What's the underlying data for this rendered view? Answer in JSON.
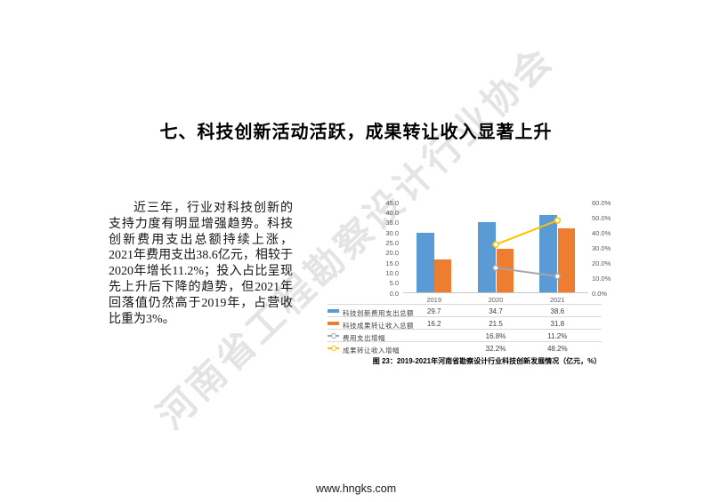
{
  "page": {
    "title": "七、科技创新活动活跃，成果转让收入显著上升",
    "paragraph": "近三年，行业对科技创新的支持力度有明显增强趋势。科技创新费用支出总额持续上涨，2021年费用支出38.6亿元，相较于2020年增长11.2%；投入占比呈现先上升后下降的趋势，但2021年回落值仍然高于2019年，占营收比重为3%。",
    "watermark": "河南省工程勘察设计行业协会",
    "footer": "www.hngks.com"
  },
  "chart_data": {
    "type": "bar+line",
    "title": "图 23：2019-2021年河南省勘察设计行业科技创新发展情况（亿元，%）",
    "categories": [
      "2019",
      "2020",
      "2021"
    ],
    "series": [
      {
        "name": "科技创新费用支出总额",
        "type": "bar",
        "axis": "left",
        "color": "#5B9BD5",
        "values": [
          29.7,
          34.7,
          38.6
        ],
        "display": [
          "29.7",
          "34.7",
          "38.6"
        ]
      },
      {
        "name": "科技成果转让收入总额",
        "type": "bar",
        "axis": "left",
        "color": "#ED7D31",
        "values": [
          16.2,
          21.5,
          31.8
        ],
        "display": [
          "16.2",
          "21.5",
          "31.8"
        ]
      },
      {
        "name": "费用支出增幅",
        "type": "line",
        "axis": "right",
        "color": "#A5A5A5",
        "values": [
          null,
          16.8,
          11.2
        ],
        "display": [
          "",
          "16.8%",
          "11.2%"
        ]
      },
      {
        "name": "成果转让收入增幅",
        "type": "line",
        "axis": "right",
        "color": "#FFC000",
        "values": [
          null,
          32.2,
          48.2
        ],
        "display": [
          "",
          "32.2%",
          "48.2%"
        ]
      }
    ],
    "left_axis": {
      "min": 0,
      "max": 45,
      "step": 5,
      "ticks": [
        "0.0",
        "5.0",
        "10.0",
        "15.0",
        "20.0",
        "25.0",
        "30.0",
        "35.0",
        "40.0",
        "45.0"
      ]
    },
    "right_axis": {
      "min": 0,
      "max": 60,
      "step": 10,
      "ticks": [
        "0.0%",
        "10.0%",
        "20.0%",
        "30.0%",
        "40.0%",
        "50.0%",
        "60.0%"
      ]
    },
    "grid": false,
    "legend_position": "bottom-table"
  }
}
